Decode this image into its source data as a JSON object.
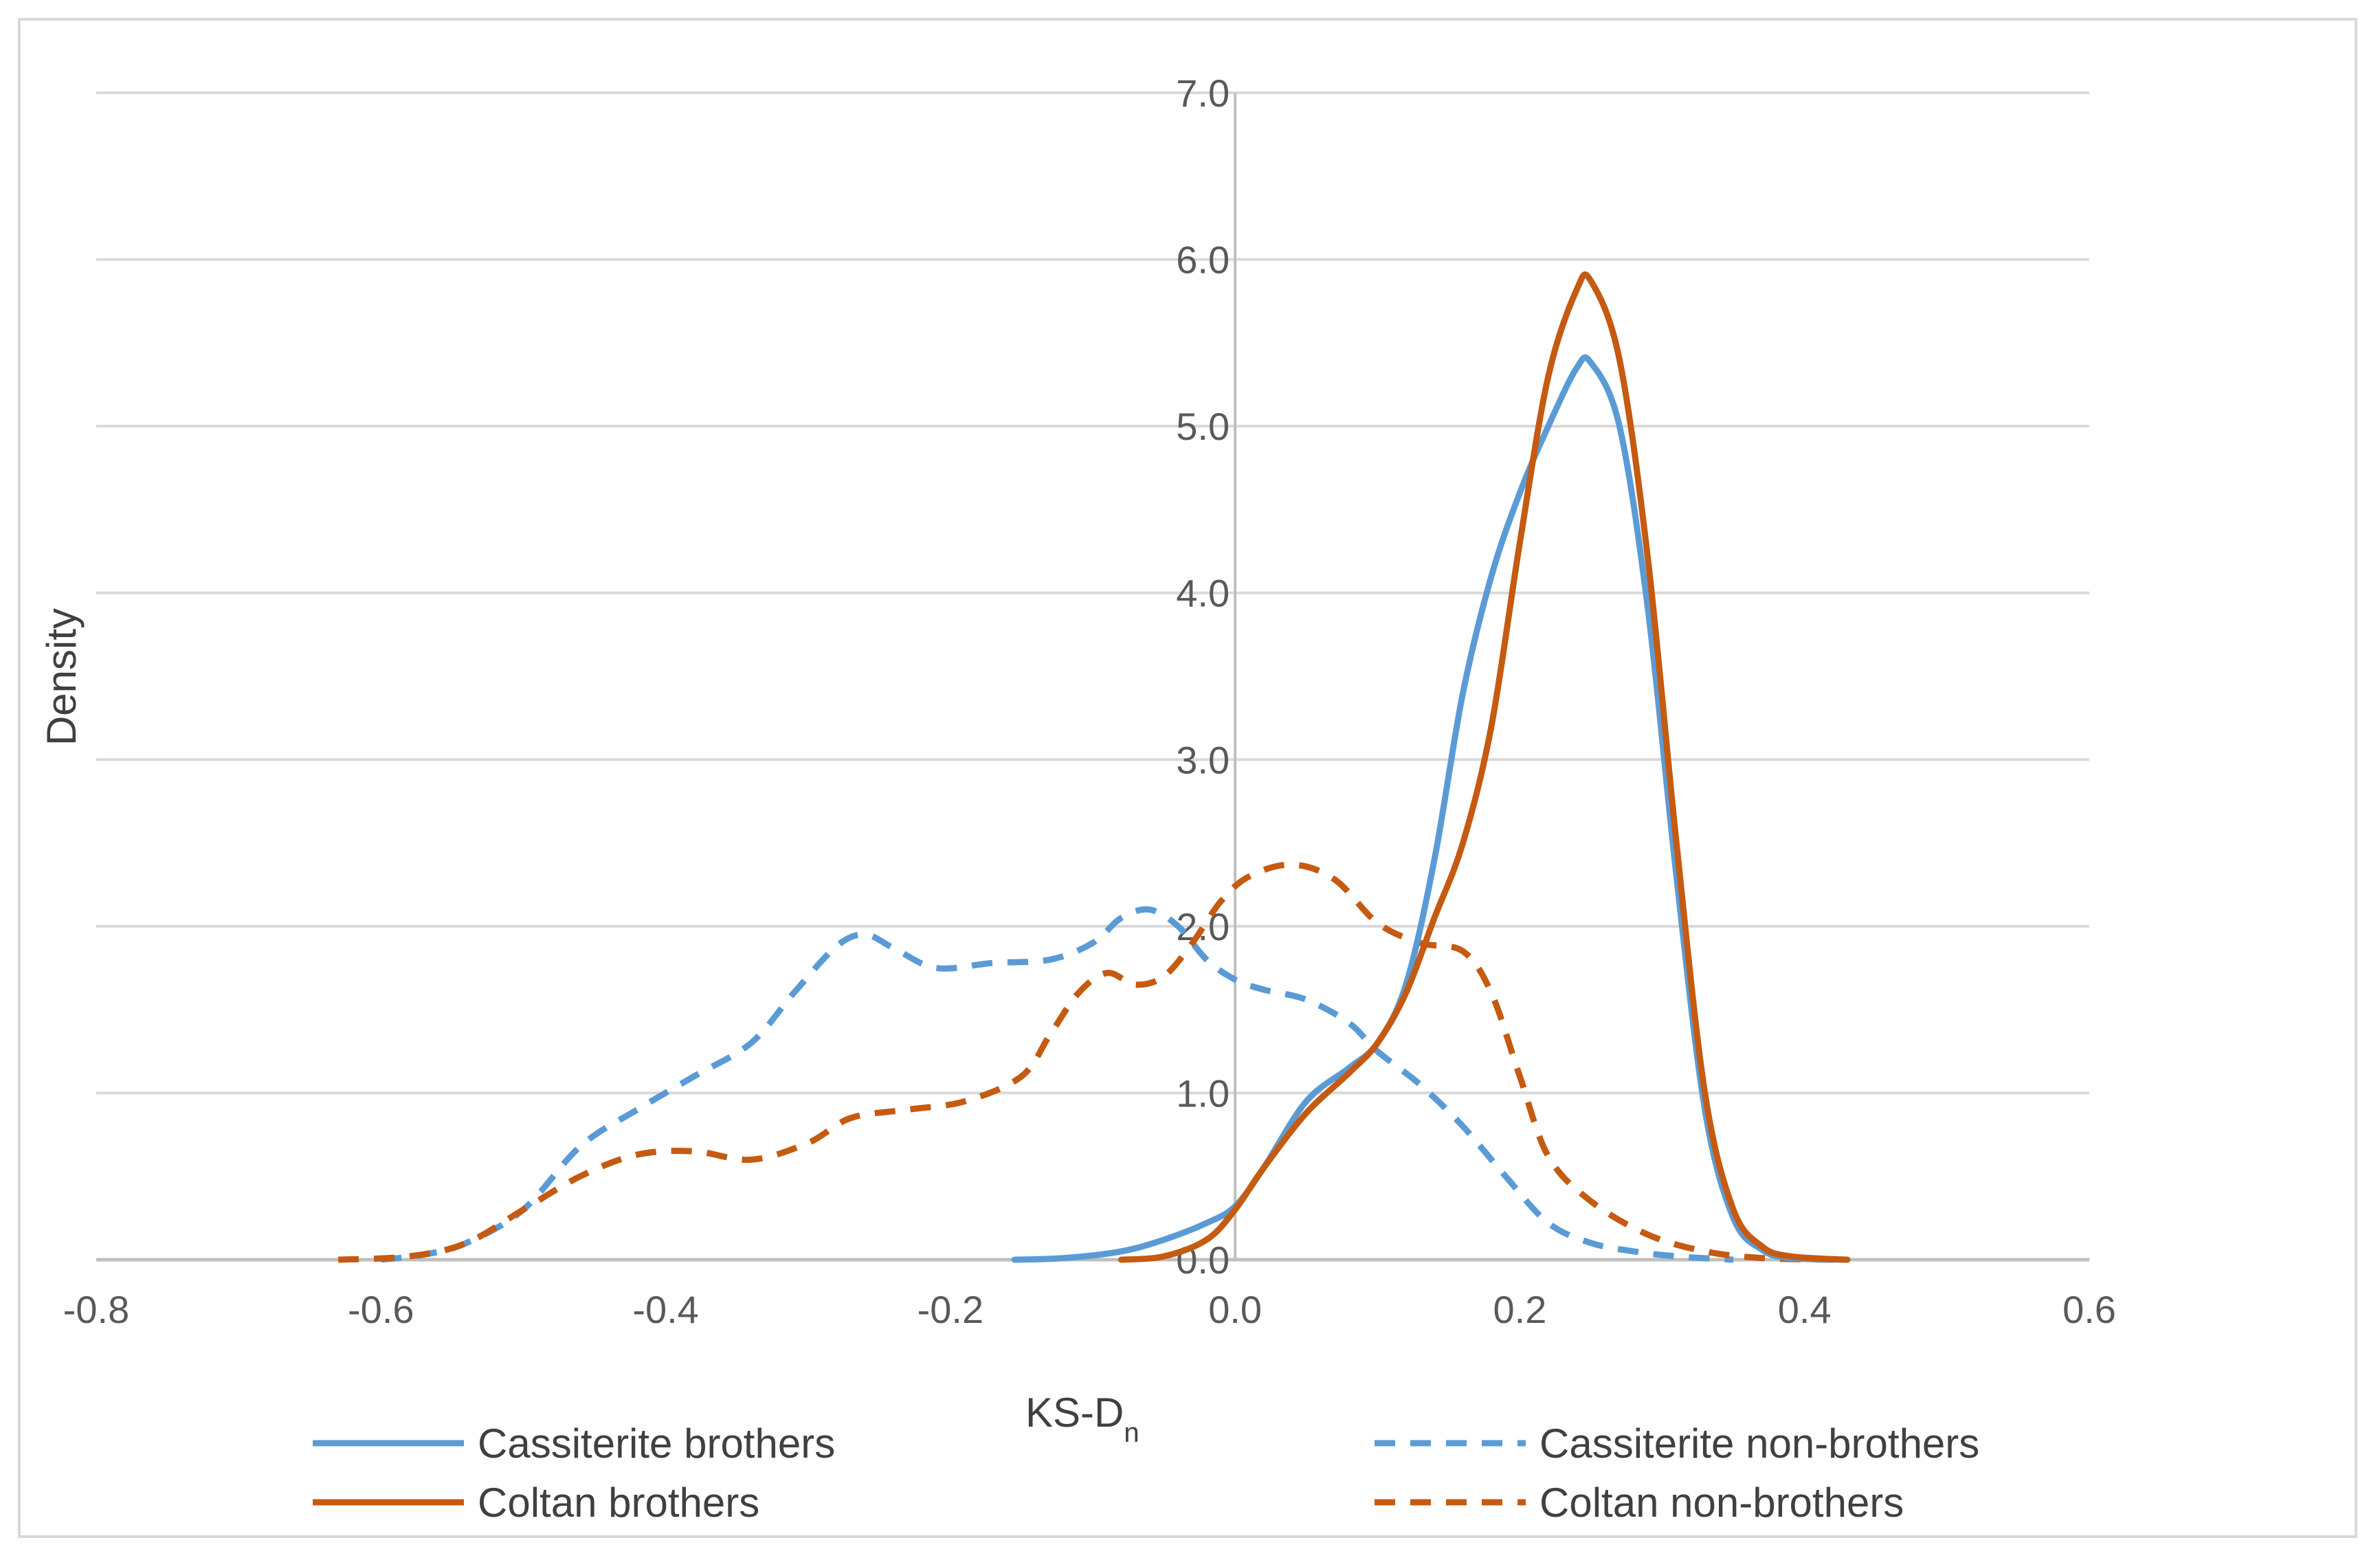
{
  "chart_data": {
    "type": "line",
    "title": "",
    "xlabel": "KS-D",
    "xlabel_subscript": "n",
    "ylabel": "Density",
    "xlim": [
      -0.8,
      0.6
    ],
    "ylim": [
      0,
      7
    ],
    "x_ticks": [
      "-0.8",
      "-0.6",
      "-0.4",
      "-0.2",
      "0.0",
      "0.2",
      "0.4",
      "0.6"
    ],
    "y_ticks": [
      "0.0",
      "1.0",
      "2.0",
      "3.0",
      "4.0",
      "5.0",
      "6.0",
      "7.0"
    ],
    "grid": "horizontal",
    "legend_position": "bottom",
    "series": [
      {
        "name": "Cassiterite brothers",
        "color": "#5b9bd5",
        "dash": "solid",
        "points": [
          [
            -0.155,
            0
          ],
          [
            -0.12,
            0.01
          ],
          [
            -0.08,
            0.05
          ],
          [
            -0.05,
            0.12
          ],
          [
            -0.02,
            0.22
          ],
          [
            0.0,
            0.32
          ],
          [
            0.02,
            0.55
          ],
          [
            0.05,
            0.95
          ],
          [
            0.08,
            1.15
          ],
          [
            0.1,
            1.3
          ],
          [
            0.12,
            1.65
          ],
          [
            0.14,
            2.4
          ],
          [
            0.16,
            3.4
          ],
          [
            0.18,
            4.1
          ],
          [
            0.2,
            4.6
          ],
          [
            0.22,
            5.0
          ],
          [
            0.24,
            5.35
          ],
          [
            0.25,
            5.38
          ],
          [
            0.27,
            5.0
          ],
          [
            0.29,
            3.9
          ],
          [
            0.31,
            2.3
          ],
          [
            0.33,
            0.9
          ],
          [
            0.35,
            0.25
          ],
          [
            0.37,
            0.06
          ],
          [
            0.39,
            0.01
          ],
          [
            0.43,
            0
          ]
        ]
      },
      {
        "name": "Cassiterite non-brothers",
        "color": "#5b9bd5",
        "dash": "dashed",
        "points": [
          [
            -0.6,
            0
          ],
          [
            -0.57,
            0.03
          ],
          [
            -0.54,
            0.1
          ],
          [
            -0.5,
            0.3
          ],
          [
            -0.46,
            0.68
          ],
          [
            -0.42,
            0.9
          ],
          [
            -0.38,
            1.1
          ],
          [
            -0.34,
            1.3
          ],
          [
            -0.31,
            1.6
          ],
          [
            -0.28,
            1.88
          ],
          [
            -0.26,
            1.95
          ],
          [
            -0.24,
            1.87
          ],
          [
            -0.21,
            1.75
          ],
          [
            -0.17,
            1.78
          ],
          [
            -0.13,
            1.8
          ],
          [
            -0.1,
            1.9
          ],
          [
            -0.08,
            2.05
          ],
          [
            -0.06,
            2.1
          ],
          [
            -0.04,
            2.0
          ],
          [
            -0.02,
            1.8
          ],
          [
            0.0,
            1.68
          ],
          [
            0.02,
            1.62
          ],
          [
            0.05,
            1.56
          ],
          [
            0.08,
            1.42
          ],
          [
            0.1,
            1.25
          ],
          [
            0.13,
            1.05
          ],
          [
            0.16,
            0.8
          ],
          [
            0.19,
            0.5
          ],
          [
            0.22,
            0.22
          ],
          [
            0.25,
            0.1
          ],
          [
            0.28,
            0.05
          ],
          [
            0.31,
            0.02
          ],
          [
            0.35,
            0
          ]
        ]
      },
      {
        "name": "Coltan brothers",
        "color": "#c55a11",
        "dash": "solid",
        "points": [
          [
            -0.08,
            0
          ],
          [
            -0.05,
            0.02
          ],
          [
            -0.02,
            0.12
          ],
          [
            0.0,
            0.3
          ],
          [
            0.02,
            0.55
          ],
          [
            0.05,
            0.88
          ],
          [
            0.08,
            1.12
          ],
          [
            0.1,
            1.3
          ],
          [
            0.12,
            1.6
          ],
          [
            0.14,
            2.05
          ],
          [
            0.16,
            2.5
          ],
          [
            0.18,
            3.2
          ],
          [
            0.2,
            4.3
          ],
          [
            0.22,
            5.3
          ],
          [
            0.24,
            5.82
          ],
          [
            0.25,
            5.87
          ],
          [
            0.27,
            5.4
          ],
          [
            0.29,
            4.2
          ],
          [
            0.31,
            2.5
          ],
          [
            0.33,
            1.0
          ],
          [
            0.35,
            0.3
          ],
          [
            0.37,
            0.08
          ],
          [
            0.39,
            0.02
          ],
          [
            0.43,
            0
          ]
        ]
      },
      {
        "name": "Coltan non-brothers",
        "color": "#c55a11",
        "dash": "dashed",
        "points": [
          [
            -0.63,
            0
          ],
          [
            -0.58,
            0.02
          ],
          [
            -0.54,
            0.1
          ],
          [
            -0.5,
            0.3
          ],
          [
            -0.46,
            0.5
          ],
          [
            -0.42,
            0.63
          ],
          [
            -0.38,
            0.65
          ],
          [
            -0.34,
            0.6
          ],
          [
            -0.3,
            0.7
          ],
          [
            -0.27,
            0.85
          ],
          [
            -0.23,
            0.9
          ],
          [
            -0.19,
            0.95
          ],
          [
            -0.15,
            1.1
          ],
          [
            -0.13,
            1.35
          ],
          [
            -0.11,
            1.6
          ],
          [
            -0.09,
            1.72
          ],
          [
            -0.07,
            1.65
          ],
          [
            -0.05,
            1.7
          ],
          [
            -0.03,
            1.9
          ],
          [
            -0.01,
            2.15
          ],
          [
            0.01,
            2.3
          ],
          [
            0.04,
            2.37
          ],
          [
            0.07,
            2.28
          ],
          [
            0.1,
            2.02
          ],
          [
            0.13,
            1.9
          ],
          [
            0.16,
            1.85
          ],
          [
            0.18,
            1.6
          ],
          [
            0.2,
            1.1
          ],
          [
            0.22,
            0.62
          ],
          [
            0.25,
            0.35
          ],
          [
            0.29,
            0.15
          ],
          [
            0.33,
            0.05
          ],
          [
            0.37,
            0.01
          ],
          [
            0.42,
            0
          ]
        ]
      }
    ]
  }
}
